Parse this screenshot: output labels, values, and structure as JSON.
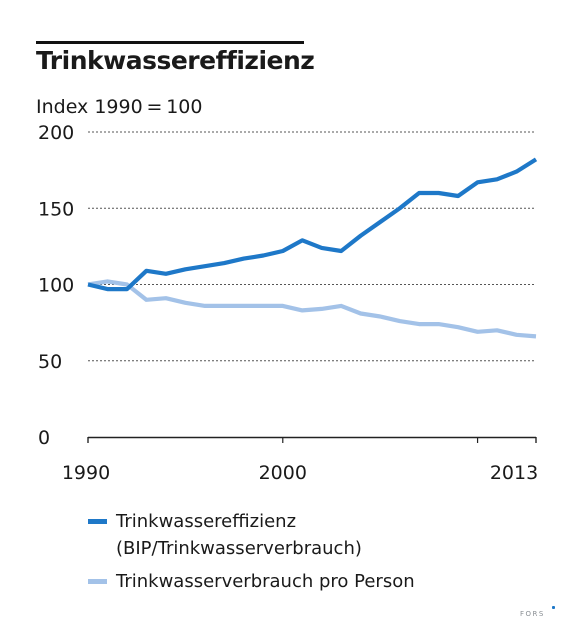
{
  "chart_data": {
    "type": "line",
    "title": "Trinkwassereffizienz",
    "unit_label": "Index 1990 = 100",
    "xlabel": "",
    "ylabel": "",
    "xlim": [
      1990,
      2013
    ],
    "ylim": [
      0,
      200
    ],
    "y_ticks": [
      0,
      50,
      100,
      150,
      200
    ],
    "x_tick_labels": [
      "1990",
      "2000",
      "2013"
    ],
    "grid": "horizontal dashed",
    "legend_position": "bottom",
    "x": [
      1990,
      1991,
      1992,
      1993,
      1994,
      1995,
      1996,
      1997,
      1998,
      1999,
      2000,
      2001,
      2002,
      2003,
      2004,
      2005,
      2006,
      2007,
      2008,
      2009,
      2010,
      2011,
      2012,
      2013
    ],
    "series": [
      {
        "name": "Trinkwassereffizienz\n(BIP/Trinkwasserverbrauch)",
        "color": "#1e78c8",
        "values": [
          100,
          97,
          97,
          109,
          107,
          110,
          112,
          114,
          117,
          119,
          122,
          129,
          124,
          122,
          132,
          141,
          150,
          160,
          160,
          158,
          167,
          169,
          174,
          182
        ]
      },
      {
        "name": "Trinkwasserverbrauch pro Person",
        "color": "#a3c2e8",
        "values": [
          100,
          102,
          100,
          90,
          91,
          88,
          86,
          86,
          86,
          86,
          86,
          83,
          84,
          86,
          81,
          79,
          76,
          74,
          74,
          72,
          69,
          70,
          67,
          66
        ]
      }
    ]
  },
  "source": "FORS"
}
